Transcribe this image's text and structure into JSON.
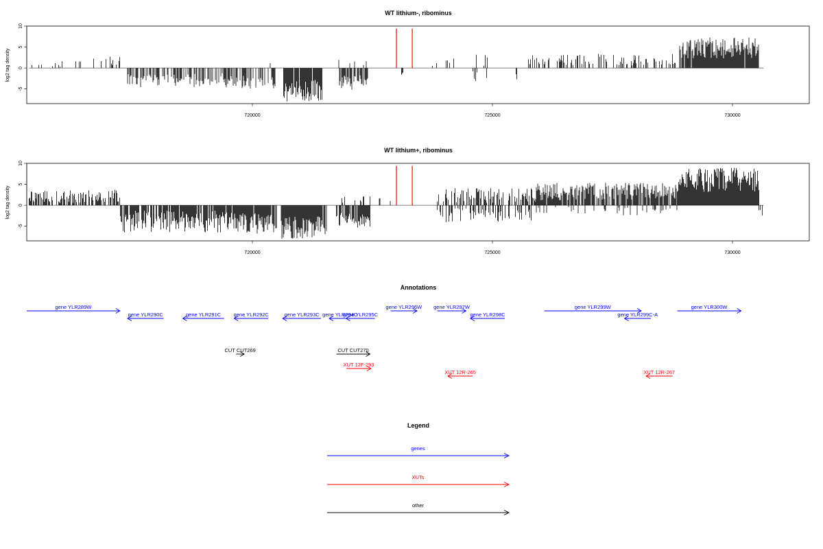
{
  "chart_data": [
    {
      "type": "bar",
      "title": "WT lithium-, ribominus",
      "ylabel": "log2 tag density",
      "xlabel": "",
      "xlim": [
        715300,
        731600
      ],
      "ylim": [
        -8.5,
        10
      ],
      "y_ticks": [
        "-5",
        "0",
        "5",
        "10"
      ],
      "x_ticks": [
        "720000",
        "725000",
        "730000"
      ],
      "grid": false,
      "bar_color": "#000000",
      "marker_color": "#ff0000",
      "markers": [
        {
          "x": 723000,
          "top": 9.4
        },
        {
          "x": 723330,
          "top": 9.4
        }
      ],
      "segments": [
        {
          "from": 715350,
          "to": 716450,
          "sign": 1,
          "base": 0.3,
          "amp": 1.6,
          "density": 0.12,
          "seed": 1
        },
        {
          "from": 716450,
          "to": 717250,
          "sign": 1,
          "base": 0.5,
          "amp": 2.3,
          "density": 0.18,
          "seed": 2
        },
        {
          "from": 717400,
          "to": 719600,
          "sign": -1,
          "base": 1.2,
          "amp": 3.6,
          "density": 0.55,
          "seed": 3
        },
        {
          "from": 719600,
          "to": 720500,
          "sign": -1,
          "base": 1.5,
          "amp": 3.5,
          "density": 0.45,
          "seed": 4
        },
        {
          "from": 720300,
          "to": 720750,
          "sign": 1,
          "base": 0.3,
          "amp": 1.5,
          "density": 0.08,
          "seed": 5
        },
        {
          "from": 720650,
          "to": 721450,
          "sign": -1,
          "base": 2.8,
          "amp": 5.2,
          "density": 0.95,
          "seed": 6
        },
        {
          "from": 721800,
          "to": 722400,
          "sign": -1,
          "base": 1.5,
          "amp": 3.8,
          "density": 0.7,
          "seed": 7
        },
        {
          "from": 721800,
          "to": 722400,
          "sign": 1,
          "base": 0.5,
          "amp": 2.5,
          "density": 0.1,
          "seed": 8
        },
        {
          "from": 723050,
          "to": 723150,
          "sign": -1,
          "base": 1.0,
          "amp": 0.8,
          "density": 0.4,
          "seed": 9
        },
        {
          "from": 723650,
          "to": 724900,
          "sign": 1,
          "base": 0.5,
          "amp": 2.8,
          "density": 0.1,
          "seed": 10
        },
        {
          "from": 724550,
          "to": 725550,
          "sign": -1,
          "base": 0.6,
          "amp": 2.5,
          "density": 0.22,
          "seed": 11
        },
        {
          "from": 725750,
          "to": 728900,
          "sign": 1,
          "base": 0.6,
          "amp": 2.8,
          "density": 0.3,
          "seed": 12
        },
        {
          "from": 728900,
          "to": 730550,
          "sign": 1,
          "base": 2.3,
          "amp": 5.0,
          "density": 0.98,
          "seed": 13
        }
      ]
    },
    {
      "type": "bar",
      "title": "WT lithium+, ribominus",
      "ylabel": "log2 tag density",
      "xlabel": "",
      "xlim": [
        715300,
        731600
      ],
      "ylim": [
        -8.5,
        10
      ],
      "y_ticks": [
        "-5",
        "0",
        "5",
        "10"
      ],
      "x_ticks": [
        "720000",
        "725000",
        "730000"
      ],
      "grid": false,
      "bar_color": "#000000",
      "marker_color": "#ff0000",
      "markers": [
        {
          "x": 723000,
          "top": 9.4
        },
        {
          "x": 723330,
          "top": 9.4
        }
      ],
      "segments": [
        {
          "from": 715350,
          "to": 717250,
          "sign": 1,
          "base": 0.5,
          "amp": 3.2,
          "density": 0.6,
          "seed": 21
        },
        {
          "from": 717250,
          "to": 719600,
          "sign": -1,
          "base": 1.3,
          "amp": 5.2,
          "density": 0.75,
          "seed": 22
        },
        {
          "from": 719600,
          "to": 720500,
          "sign": -1,
          "base": 1.8,
          "amp": 5.0,
          "density": 0.85,
          "seed": 23
        },
        {
          "from": 720600,
          "to": 721550,
          "sign": -1,
          "base": 2.5,
          "amp": 5.5,
          "density": 0.98,
          "seed": 24
        },
        {
          "from": 721750,
          "to": 722450,
          "sign": -1,
          "base": 1.5,
          "amp": 4.0,
          "density": 0.85,
          "seed": 25
        },
        {
          "from": 721750,
          "to": 722450,
          "sign": 1,
          "base": 0.4,
          "amp": 1.8,
          "density": 0.2,
          "seed": 26
        },
        {
          "from": 722500,
          "to": 722900,
          "sign": 1,
          "base": 0.3,
          "amp": 1.5,
          "density": 0.1,
          "seed": 27
        },
        {
          "from": 723300,
          "to": 723700,
          "sign": -1,
          "base": 0.5,
          "amp": 2.0,
          "density": 0.1,
          "seed": 28
        },
        {
          "from": 723850,
          "to": 725900,
          "sign": 1,
          "base": 0.6,
          "amp": 3.5,
          "density": 0.55,
          "seed": 29
        },
        {
          "from": 723850,
          "to": 725900,
          "sign": -1,
          "base": 0.6,
          "amp": 3.5,
          "density": 0.35,
          "seed": 30
        },
        {
          "from": 725900,
          "to": 728850,
          "sign": 1,
          "base": 1.2,
          "amp": 4.2,
          "density": 0.85,
          "seed": 31
        },
        {
          "from": 725900,
          "to": 728850,
          "sign": -1,
          "base": 0.4,
          "amp": 2.0,
          "density": 0.15,
          "seed": 32
        },
        {
          "from": 728850,
          "to": 730550,
          "sign": 1,
          "base": 3.0,
          "amp": 6.0,
          "density": 0.98,
          "seed": 33
        },
        {
          "from": 730550,
          "to": 730650,
          "sign": -1,
          "base": 1.0,
          "amp": 2.0,
          "density": 0.5,
          "seed": 34
        }
      ]
    }
  ],
  "annotations": {
    "title": "Annotations",
    "features": [
      {
        "label": "gene YLR289W",
        "start": 715300,
        "end": 717240,
        "strand": "+",
        "row": 0,
        "color": "#0000ff"
      },
      {
        "label": "gene YLR290C",
        "start": 717400,
        "end": 718150,
        "strand": "-",
        "row": 1,
        "color": "#0000ff"
      },
      {
        "label": "gene YLR291C",
        "start": 718550,
        "end": 719410,
        "strand": "-",
        "row": 1,
        "color": "#0000ff"
      },
      {
        "label": "gene YLR292C",
        "start": 719620,
        "end": 720330,
        "strand": "-",
        "row": 1,
        "color": "#0000ff"
      },
      {
        "label": "gene YLR293C",
        "start": 720630,
        "end": 721430,
        "strand": "-",
        "row": 1,
        "color": "#0000ff"
      },
      {
        "label": "gene YLR294C",
        "start": 721600,
        "end": 722050,
        "strand": "-",
        "row": 1,
        "color": "#0000ff"
      },
      {
        "label": "gene YLR295C",
        "start": 721950,
        "end": 722550,
        "strand": "-",
        "row": 1,
        "color": "#0000ff"
      },
      {
        "label": "gene YLR296W",
        "start": 722880,
        "end": 723430,
        "strand": "+",
        "row": 0,
        "color": "#0000ff"
      },
      {
        "label": "gene YLR297W",
        "start": 723850,
        "end": 724450,
        "strand": "+",
        "row": 0,
        "color": "#0000ff"
      },
      {
        "label": "gene YLR298C",
        "start": 724540,
        "end": 725260,
        "strand": "-",
        "row": 1,
        "color": "#0000ff"
      },
      {
        "label": "gene YLR299W",
        "start": 726080,
        "end": 728100,
        "strand": "+",
        "row": 0,
        "color": "#0000ff"
      },
      {
        "label": "gene YLR299C-A",
        "start": 727750,
        "end": 728300,
        "strand": "-",
        "row": 1,
        "color": "#0000ff"
      },
      {
        "label": "gene YLR300W",
        "start": 728850,
        "end": 730180,
        "strand": "+",
        "row": 0,
        "color": "#0000ff"
      },
      {
        "label": "CUT CUT269",
        "start": 719660,
        "end": 719830,
        "strand": "+",
        "row": 3,
        "color": "#000000"
      },
      {
        "label": "CUT CUT270",
        "start": 721750,
        "end": 722450,
        "strand": "+",
        "row": 3,
        "color": "#000000"
      },
      {
        "label": "XUT 12F-293",
        "start": 721960,
        "end": 722470,
        "strand": "+",
        "row": 4,
        "color": "#ff0000"
      },
      {
        "label": "XUT 12R-265",
        "start": 724070,
        "end": 724590,
        "strand": "-",
        "row": 5,
        "color": "#ff0000"
      },
      {
        "label": "XUT 12R-267",
        "start": 728200,
        "end": 728750,
        "strand": "-",
        "row": 5,
        "color": "#ff0000"
      }
    ]
  },
  "legend": {
    "title": "Legend",
    "items": [
      {
        "label": "genes",
        "color": "#0000ff"
      },
      {
        "label": "XUTs",
        "color": "#ff0000"
      },
      {
        "label": "other",
        "color": "#000000"
      }
    ]
  }
}
